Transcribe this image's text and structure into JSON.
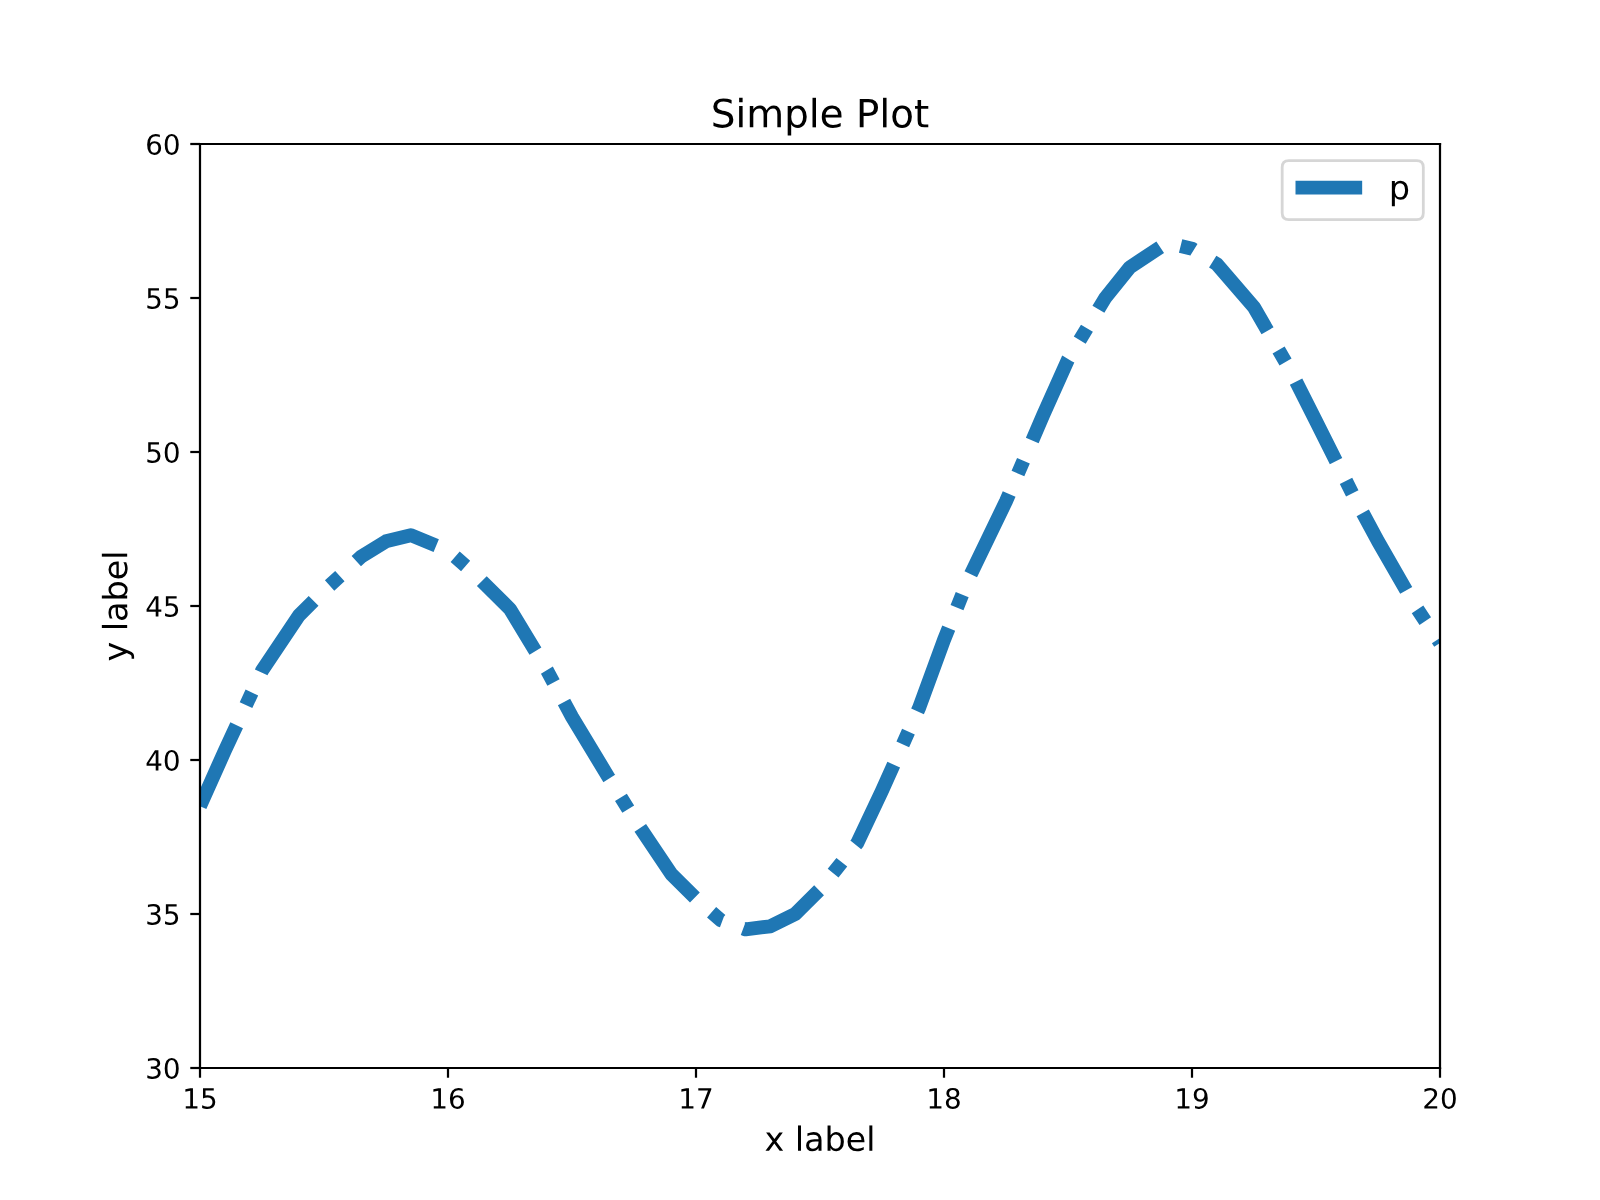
{
  "chart_data": {
    "type": "line",
    "title": "Simple Plot",
    "xlabel": "x label",
    "ylabel": "y label",
    "x": [
      15.0,
      15.1,
      15.25,
      15.4,
      15.5,
      15.65,
      15.75,
      15.85,
      16.0,
      16.1,
      16.25,
      16.4,
      16.5,
      16.65,
      16.75,
      16.9,
      17.0,
      17.1,
      17.2,
      17.3,
      17.4,
      17.5,
      17.65,
      17.75,
      17.9,
      18.0,
      18.1,
      18.25,
      18.4,
      18.5,
      18.65,
      18.75,
      18.9,
      19.0,
      19.1,
      19.25,
      19.4,
      19.5,
      19.65,
      19.75,
      19.9,
      20.0
    ],
    "series": [
      {
        "name": "p",
        "color": "#1f77b4",
        "values": [
          38.5,
          40.3,
          42.9,
          44.7,
          45.5,
          46.6,
          47.1,
          47.3,
          46.8,
          46.1,
          44.9,
          42.9,
          41.4,
          39.4,
          38.1,
          36.3,
          35.5,
          34.8,
          34.5,
          34.6,
          35.0,
          35.8,
          37.3,
          39.0,
          41.7,
          43.9,
          45.9,
          48.4,
          51.2,
          53.0,
          55.0,
          56.0,
          56.8,
          56.6,
          56.1,
          54.7,
          52.6,
          51.0,
          48.6,
          47.1,
          45.0,
          43.8
        ]
      }
    ],
    "xlim": [
      15,
      20
    ],
    "ylim": [
      30,
      60
    ],
    "xticks": [
      15,
      16,
      17,
      18,
      19,
      20
    ],
    "yticks": [
      30,
      35,
      40,
      45,
      50,
      55,
      60
    ],
    "legend": "top right",
    "line_style": "dashdot",
    "grid": false
  }
}
